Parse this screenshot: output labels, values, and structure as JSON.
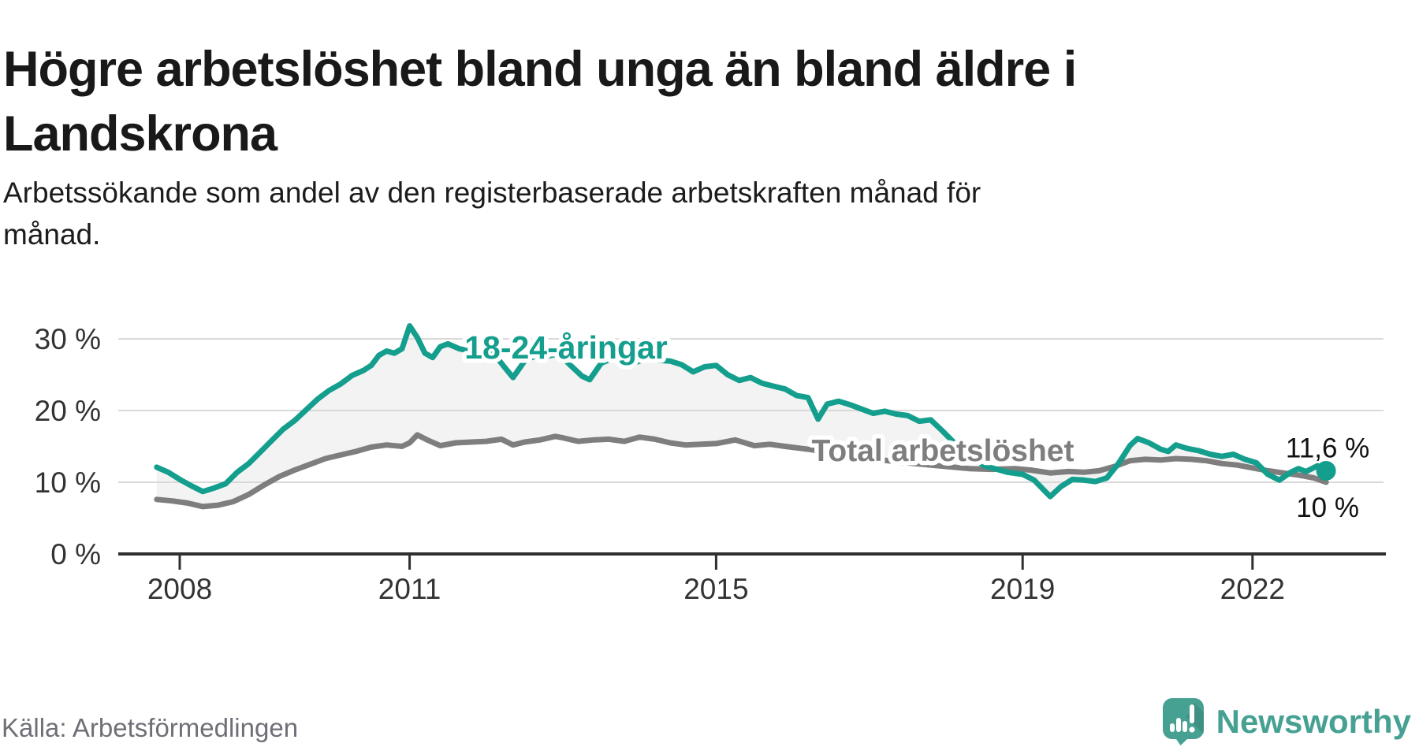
{
  "header": {
    "title_lines": [
      "Högre arbetslöshet bland unga än bland äldre i",
      "Landskrona"
    ],
    "subtitle_lines": [
      "Arbetssökande som andel av den registerbaserade arbetskraften månad för",
      "månad."
    ]
  },
  "footer": {
    "source": "Källa: Arbetsförmedlingen",
    "brand": "Newsworthy"
  },
  "colors": {
    "youth_line": "#149e8d",
    "total_line": "#7e7e7e",
    "band_fill": "#f3f3f3",
    "gridline": "#d9d9d9",
    "axis": "#2f2f2f",
    "tick_text": "#333333",
    "end_label_text": "#111111",
    "source_text": "#6f6f78",
    "brand_teal": "#47a193"
  },
  "chart_data": {
    "type": "line",
    "title": "Högre arbetslöshet bland unga än bland äldre i Landskrona",
    "xlabel": "",
    "ylabel": "",
    "grid": "horizontal",
    "xlim": [
      2007.6,
      2023.1
    ],
    "ylim": [
      0,
      33.5
    ],
    "x_ticks": [
      2008,
      2011,
      2015,
      2019,
      2022
    ],
    "x_tick_labels": [
      "2008",
      "2011",
      "2015",
      "2019",
      "2022"
    ],
    "y_ticks": [
      0,
      10,
      20,
      30
    ],
    "y_tick_labels": [
      "0 %",
      "10 %",
      "20 %",
      "30 %"
    ],
    "band_fill_between_series": true,
    "series": [
      {
        "name": "Total arbetslöshet",
        "color": "#7e7e7e",
        "end_label": "10 %",
        "end_value": 10.0,
        "points": [
          [
            2007.7,
            7.6
          ],
          [
            2007.9,
            7.4
          ],
          [
            2008.1,
            7.1
          ],
          [
            2008.3,
            6.6
          ],
          [
            2008.5,
            6.8
          ],
          [
            2008.7,
            7.3
          ],
          [
            2008.9,
            8.3
          ],
          [
            2009.1,
            9.6
          ],
          [
            2009.3,
            10.8
          ],
          [
            2009.5,
            11.7
          ],
          [
            2009.7,
            12.5
          ],
          [
            2009.9,
            13.3
          ],
          [
            2010.1,
            13.8
          ],
          [
            2010.3,
            14.3
          ],
          [
            2010.5,
            14.9
          ],
          [
            2010.7,
            15.2
          ],
          [
            2010.9,
            15.0
          ],
          [
            2011.0,
            15.5
          ],
          [
            2011.1,
            16.6
          ],
          [
            2011.25,
            15.8
          ],
          [
            2011.4,
            15.1
          ],
          [
            2011.6,
            15.5
          ],
          [
            2011.8,
            15.6
          ],
          [
            2012.0,
            15.7
          ],
          [
            2012.2,
            16.0
          ],
          [
            2012.35,
            15.2
          ],
          [
            2012.5,
            15.6
          ],
          [
            2012.7,
            15.9
          ],
          [
            2012.9,
            16.4
          ],
          [
            2013.0,
            16.2
          ],
          [
            2013.2,
            15.7
          ],
          [
            2013.4,
            15.9
          ],
          [
            2013.6,
            16.0
          ],
          [
            2013.8,
            15.7
          ],
          [
            2014.0,
            16.3
          ],
          [
            2014.2,
            16.0
          ],
          [
            2014.4,
            15.5
          ],
          [
            2014.6,
            15.2
          ],
          [
            2014.8,
            15.3
          ],
          [
            2015.0,
            15.4
          ],
          [
            2015.25,
            15.9
          ],
          [
            2015.5,
            15.1
          ],
          [
            2015.7,
            15.3
          ],
          [
            2015.9,
            15.0
          ],
          [
            2016.2,
            14.6
          ],
          [
            2016.5,
            14.1
          ],
          [
            2016.8,
            13.6
          ],
          [
            2017.1,
            13.2
          ],
          [
            2017.4,
            12.8
          ],
          [
            2017.7,
            12.5
          ],
          [
            2018.0,
            12.2
          ],
          [
            2018.3,
            11.9
          ],
          [
            2018.6,
            11.8
          ],
          [
            2018.9,
            11.9
          ],
          [
            2019.1,
            11.7
          ],
          [
            2019.36,
            11.3
          ],
          [
            2019.6,
            11.5
          ],
          [
            2019.8,
            11.4
          ],
          [
            2020.0,
            11.6
          ],
          [
            2020.2,
            12.2
          ],
          [
            2020.4,
            13.0
          ],
          [
            2020.6,
            13.2
          ],
          [
            2020.8,
            13.1
          ],
          [
            2021.0,
            13.3
          ],
          [
            2021.2,
            13.2
          ],
          [
            2021.4,
            13.0
          ],
          [
            2021.6,
            12.6
          ],
          [
            2021.8,
            12.4
          ],
          [
            2022.0,
            12.0
          ],
          [
            2022.2,
            11.6
          ],
          [
            2022.4,
            11.3
          ],
          [
            2022.6,
            11.0
          ],
          [
            2022.8,
            10.6
          ],
          [
            2022.96,
            10.0
          ]
        ]
      },
      {
        "name": "18-24-åringar",
        "color": "#149e8d",
        "end_label": "11,6 %",
        "end_value": 11.6,
        "end_dot": true,
        "points": [
          [
            2007.7,
            12.1
          ],
          [
            2007.85,
            11.4
          ],
          [
            2008.0,
            10.4
          ],
          [
            2008.15,
            9.5
          ],
          [
            2008.3,
            8.7
          ],
          [
            2008.45,
            9.2
          ],
          [
            2008.6,
            9.8
          ],
          [
            2008.75,
            11.4
          ],
          [
            2008.9,
            12.6
          ],
          [
            2009.05,
            14.2
          ],
          [
            2009.2,
            15.8
          ],
          [
            2009.35,
            17.4
          ],
          [
            2009.5,
            18.6
          ],
          [
            2009.65,
            20.1
          ],
          [
            2009.8,
            21.6
          ],
          [
            2009.95,
            22.8
          ],
          [
            2010.1,
            23.7
          ],
          [
            2010.25,
            24.9
          ],
          [
            2010.4,
            25.6
          ],
          [
            2010.5,
            26.3
          ],
          [
            2010.6,
            27.7
          ],
          [
            2010.7,
            28.3
          ],
          [
            2010.8,
            28.0
          ],
          [
            2010.9,
            28.6
          ],
          [
            2011.0,
            31.8
          ],
          [
            2011.1,
            30.2
          ],
          [
            2011.2,
            28.0
          ],
          [
            2011.3,
            27.4
          ],
          [
            2011.4,
            28.9
          ],
          [
            2011.5,
            29.3
          ],
          [
            2011.65,
            28.6
          ],
          [
            2011.8,
            28.3
          ],
          [
            2011.95,
            28.6
          ],
          [
            2012.1,
            27.9
          ],
          [
            2012.25,
            25.9
          ],
          [
            2012.35,
            24.6
          ],
          [
            2012.5,
            26.9
          ],
          [
            2012.65,
            27.7
          ],
          [
            2012.8,
            27.6
          ],
          [
            2012.95,
            27.9
          ],
          [
            2013.1,
            26.3
          ],
          [
            2013.25,
            24.8
          ],
          [
            2013.35,
            24.3
          ],
          [
            2013.5,
            26.6
          ],
          [
            2013.65,
            27.3
          ],
          [
            2013.8,
            26.5
          ],
          [
            2013.95,
            26.7
          ],
          [
            2014.1,
            27.3
          ],
          [
            2014.25,
            27.0
          ],
          [
            2014.4,
            26.9
          ],
          [
            2014.55,
            26.4
          ],
          [
            2014.7,
            25.4
          ],
          [
            2014.85,
            26.1
          ],
          [
            2015.0,
            26.3
          ],
          [
            2015.15,
            25.0
          ],
          [
            2015.3,
            24.2
          ],
          [
            2015.45,
            24.6
          ],
          [
            2015.6,
            23.8
          ],
          [
            2015.75,
            23.4
          ],
          [
            2015.9,
            23.0
          ],
          [
            2016.05,
            22.1
          ],
          [
            2016.2,
            21.8
          ],
          [
            2016.33,
            18.8
          ],
          [
            2016.45,
            20.9
          ],
          [
            2016.6,
            21.3
          ],
          [
            2016.75,
            20.8
          ],
          [
            2016.9,
            20.2
          ],
          [
            2017.05,
            19.6
          ],
          [
            2017.2,
            19.9
          ],
          [
            2017.35,
            19.5
          ],
          [
            2017.5,
            19.3
          ],
          [
            2017.65,
            18.5
          ],
          [
            2017.8,
            18.7
          ],
          [
            2017.95,
            17.2
          ],
          [
            2018.2,
            14.5
          ],
          [
            2018.5,
            12.3
          ],
          [
            2018.8,
            11.4
          ],
          [
            2019.0,
            11.1
          ],
          [
            2019.15,
            10.3
          ],
          [
            2019.36,
            8.0
          ],
          [
            2019.5,
            9.4
          ],
          [
            2019.65,
            10.4
          ],
          [
            2019.8,
            10.3
          ],
          [
            2019.95,
            10.1
          ],
          [
            2020.1,
            10.6
          ],
          [
            2020.25,
            12.6
          ],
          [
            2020.4,
            15.1
          ],
          [
            2020.5,
            16.1
          ],
          [
            2020.65,
            15.5
          ],
          [
            2020.8,
            14.6
          ],
          [
            2020.9,
            14.3
          ],
          [
            2021.0,
            15.2
          ],
          [
            2021.15,
            14.7
          ],
          [
            2021.3,
            14.4
          ],
          [
            2021.45,
            13.9
          ],
          [
            2021.6,
            13.6
          ],
          [
            2021.75,
            13.9
          ],
          [
            2021.9,
            13.2
          ],
          [
            2022.05,
            12.7
          ],
          [
            2022.2,
            11.1
          ],
          [
            2022.35,
            10.3
          ],
          [
            2022.5,
            11.4
          ],
          [
            2022.6,
            11.9
          ],
          [
            2022.7,
            11.5
          ],
          [
            2022.85,
            12.3
          ],
          [
            2022.96,
            11.6
          ]
        ]
      }
    ],
    "legend_inline_labels": [
      {
        "text": "18-24-åringar",
        "series": 1
      },
      {
        "text": "Total arbetslöshet",
        "series": 0
      }
    ]
  }
}
